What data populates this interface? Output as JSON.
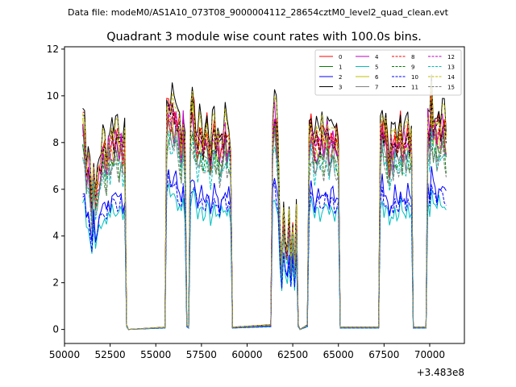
{
  "figure": {
    "suptitle": "Data file: modeM0/AS1A10_073T08_9000004112_28654cztM0_level2_quad_clean.evt",
    "offset_label": "+3.483e8"
  },
  "chart_data": {
    "type": "line",
    "title": "Quadrant 3 module wise count rates with 100.0s bins.",
    "xlabel": "",
    "ylabel": "",
    "x_offset": 348300000,
    "xlim": [
      50000,
      71900
    ],
    "ylim": [
      -0.6,
      12.1
    ],
    "xticks": [
      50000,
      52500,
      55000,
      57500,
      60000,
      62500,
      65000,
      67500,
      70000
    ],
    "xtick_labels": [
      "50000",
      "52500",
      "55000",
      "57500",
      "60000",
      "62500",
      "65000",
      "67500",
      "70000"
    ],
    "yticks": [
      0,
      2,
      4,
      6,
      8,
      10,
      12
    ],
    "ytick_labels": [
      "0",
      "2",
      "4",
      "6",
      "8",
      "10",
      "12"
    ],
    "grid": false,
    "legend_position": "top-right",
    "legend_columns": 4,
    "approximate_profile": {
      "x": [
        51000,
        51100,
        51200,
        51300,
        51400,
        51500,
        51600,
        51700,
        51800,
        51900,
        52000,
        52100,
        52200,
        52300,
        52400,
        52500,
        52600,
        52700,
        52800,
        52900,
        53000,
        53100,
        53200,
        53300,
        53400,
        53500,
        55500,
        55600,
        55700,
        55800,
        55900,
        56000,
        56100,
        56200,
        56300,
        56400,
        56500,
        56600,
        56700,
        56800,
        56900,
        57000,
        57100,
        57200,
        57300,
        57400,
        57500,
        57600,
        57700,
        57800,
        57900,
        58000,
        58100,
        58200,
        58300,
        58400,
        58500,
        58600,
        58700,
        58800,
        58900,
        59000,
        59100,
        59200,
        61300,
        61400,
        61500,
        61600,
        61700,
        61800,
        61900,
        62000,
        62100,
        62200,
        62300,
        62400,
        62500,
        62600,
        62700,
        62800,
        62900,
        63300,
        63400,
        63500,
        63600,
        63700,
        63800,
        63900,
        64000,
        64100,
        64200,
        64300,
        64400,
        64500,
        64600,
        64700,
        64800,
        64900,
        65000,
        65100,
        67200,
        67300,
        67400,
        67500,
        67600,
        67700,
        67800,
        67900,
        68000,
        68100,
        68200,
        68300,
        68400,
        68500,
        68600,
        68700,
        68800,
        68900,
        69000,
        69100,
        69800,
        69900,
        70000,
        70100,
        70200,
        70300,
        70400,
        70500,
        70600,
        70700,
        70800,
        70900
      ],
      "y": [
        9.5,
        9.2,
        7.2,
        7.8,
        6.9,
        5.5,
        7.6,
        6.1,
        6.8,
        7.3,
        7.6,
        8.4,
        8.2,
        7.5,
        8.7,
        8.3,
        8.8,
        8.5,
        9.0,
        8.8,
        8.4,
        8.9,
        8.2,
        8.6,
        0.2,
        0.0,
        0.1,
        9.8,
        10.3,
        9.9,
        10.0,
        9.7,
        9.9,
        9.4,
        9.1,
        8.2,
        9.6,
        8.1,
        0.2,
        0.1,
        9.6,
        10.2,
        9.7,
        8.8,
        8.4,
        9.0,
        8.9,
        8.3,
        8.7,
        9.1,
        8.6,
        7.8,
        8.8,
        9.2,
        8.4,
        8.9,
        8.1,
        8.5,
        8.6,
        9.3,
        8.5,
        8.8,
        8.1,
        0.1,
        0.2,
        9.1,
        10.1,
        9.4,
        8.2,
        4.6,
        2.9,
        5.3,
        3.8,
        3.5,
        5.0,
        3.1,
        4.8,
        2.9,
        5.4,
        0.2,
        0.0,
        0.2,
        8.6,
        9.4,
        8.9,
        8.3,
        8.7,
        8.8,
        8.5,
        9.0,
        8.6,
        8.9,
        9.2,
        8.4,
        8.8,
        9.0,
        8.5,
        8.7,
        8.4,
        0.1,
        0.1,
        8.7,
        9.6,
        8.8,
        9.1,
        8.3,
        7.5,
        8.6,
        8.2,
        8.9,
        8.4,
        8.6,
        9.2,
        8.3,
        8.8,
        8.5,
        9.1,
        8.4,
        8.9,
        0.1,
        0.1,
        9.6,
        8.8,
        10.4,
        9.2,
        9.5,
        8.9,
        9.3,
        9.0,
        9.6,
        9.3,
        8.6
      ]
    },
    "series": [
      {
        "name": "0",
        "color": "#ff0000",
        "dash": "solid",
        "scale": 0.95
      },
      {
        "name": "1",
        "color": "#008000",
        "dash": "solid",
        "scale": 0.87
      },
      {
        "name": "2",
        "color": "#0000ff",
        "dash": "solid",
        "scale": 0.65
      },
      {
        "name": "3",
        "color": "#000000",
        "dash": "solid",
        "scale": 1.0
      },
      {
        "name": "4",
        "color": "#bf00bf",
        "dash": "solid",
        "scale": 0.92
      },
      {
        "name": "5",
        "color": "#00bfbf",
        "dash": "solid",
        "scale": 0.58
      },
      {
        "name": "6",
        "color": "#bfbf00",
        "dash": "solid",
        "scale": 0.89
      },
      {
        "name": "7",
        "color": "#808080",
        "dash": "solid",
        "scale": 0.84
      },
      {
        "name": "8",
        "color": "#ff0000",
        "dash": "dashed",
        "scale": 0.91
      },
      {
        "name": "9",
        "color": "#008000",
        "dash": "dashed",
        "scale": 0.82
      },
      {
        "name": "10",
        "color": "#0000ff",
        "dash": "dashed",
        "scale": 0.62
      },
      {
        "name": "11",
        "color": "#000000",
        "dash": "dashed",
        "scale": 0.93
      },
      {
        "name": "12",
        "color": "#bf00bf",
        "dash": "dashed",
        "scale": 0.88
      },
      {
        "name": "13",
        "color": "#00bfbf",
        "dash": "dashed",
        "scale": 0.8
      },
      {
        "name": "14",
        "color": "#bfbf00",
        "dash": "dashed",
        "scale": 0.97
      },
      {
        "name": "15",
        "color": "#808080",
        "dash": "dashed",
        "scale": 0.79
      }
    ]
  }
}
